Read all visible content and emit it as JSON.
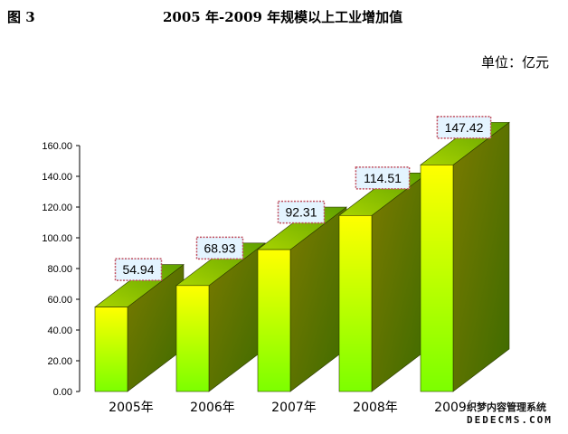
{
  "figure_label": "图 3",
  "title": "2005 年-2009 年规模以上工业增加值",
  "unit_text": "单位：亿元",
  "watermark": {
    "line1": "织梦内容管理系统",
    "line2": "DEDECMS.COM"
  },
  "colors": {
    "front_top": "#ffff00",
    "front_bottom": "#7cff00",
    "side": "#6e7400",
    "top": "#88c400",
    "label_border": "#c05060",
    "label_bg": "#e4f4ff"
  },
  "chart_data": {
    "type": "bar",
    "categories": [
      "2005年",
      "2006年",
      "2007年",
      "2008年",
      "2009年"
    ],
    "values": [
      54.94,
      68.93,
      92.31,
      114.51,
      147.42
    ],
    "value_labels": [
      "54.94",
      "68.93",
      "92.31",
      "114.51",
      "147.42"
    ],
    "title": "2005 年-2009 年规模以上工业增加值",
    "xlabel": "",
    "ylabel": "",
    "ylim": [
      0,
      160
    ],
    "y_ticks": [
      "0.00",
      "20.00",
      "40.00",
      "60.00",
      "80.00",
      "100.00",
      "120.00",
      "140.00",
      "160.00"
    ],
    "grid": false,
    "legend": "none",
    "style": "3d"
  }
}
